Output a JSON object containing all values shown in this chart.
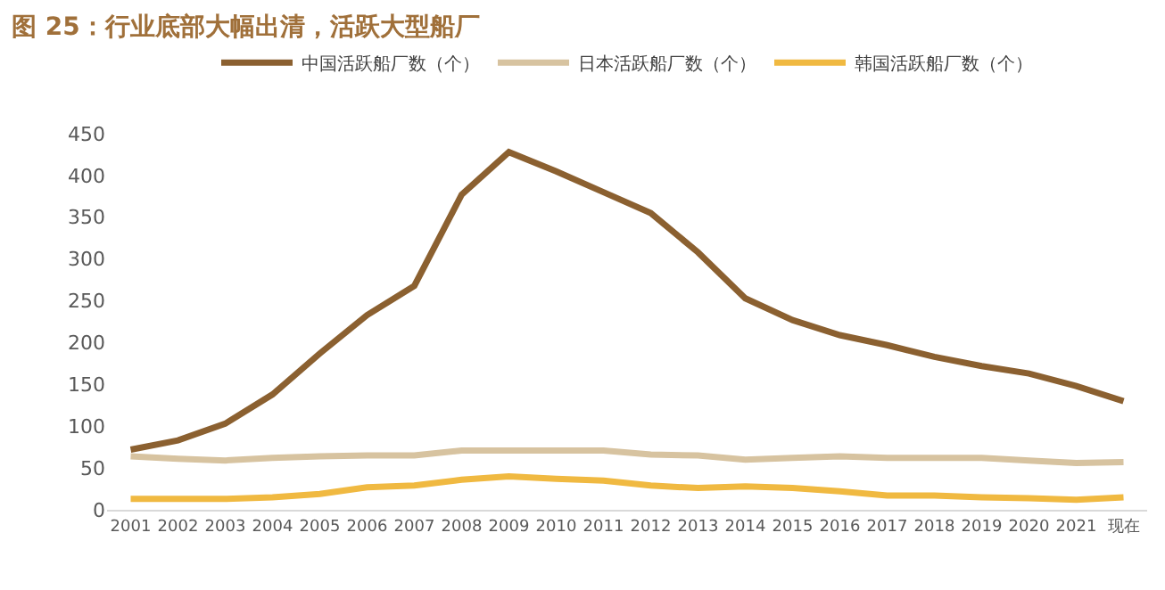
{
  "chart_data": {
    "type": "line",
    "title": "图 25：行业底部大幅出清，活跃大型船厂",
    "categories": [
      "2001",
      "2002",
      "2003",
      "2004",
      "2005",
      "2006",
      "2007",
      "2008",
      "2009",
      "2010",
      "2011",
      "2012",
      "2013",
      "2014",
      "2015",
      "2016",
      "2017",
      "2018",
      "2019",
      "2020",
      "2021",
      "现在"
    ],
    "series": [
      {
        "name": "中国活跃船厂数（个）",
        "color": "#8b6030",
        "values": [
          72,
          83,
          103,
          138,
          187,
          233,
          268,
          377,
          428,
          405,
          380,
          355,
          308,
          253,
          227,
          209,
          197,
          183,
          172,
          163,
          148,
          130
        ]
      },
      {
        "name": "日本活跃船厂数（个）",
        "color": "#d7c3a0",
        "values": [
          64,
          61,
          59,
          62,
          64,
          65,
          65,
          71,
          71,
          71,
          71,
          66,
          65,
          60,
          62,
          64,
          62,
          62,
          62,
          59,
          56,
          57
        ]
      },
      {
        "name": "韩国活跃船厂数（个）",
        "color": "#f0b941",
        "values": [
          13,
          13,
          13,
          15,
          19,
          27,
          29,
          36,
          40,
          37,
          35,
          29,
          26,
          28,
          26,
          22,
          17,
          17,
          15,
          14,
          12,
          15
        ]
      }
    ],
    "ylim": [
      0,
      450
    ],
    "yticks": [
      0,
      50,
      100,
      150,
      200,
      250,
      300,
      350,
      400,
      450
    ],
    "grid": false,
    "legend": "top",
    "marker": "none",
    "line_style": "solid"
  }
}
